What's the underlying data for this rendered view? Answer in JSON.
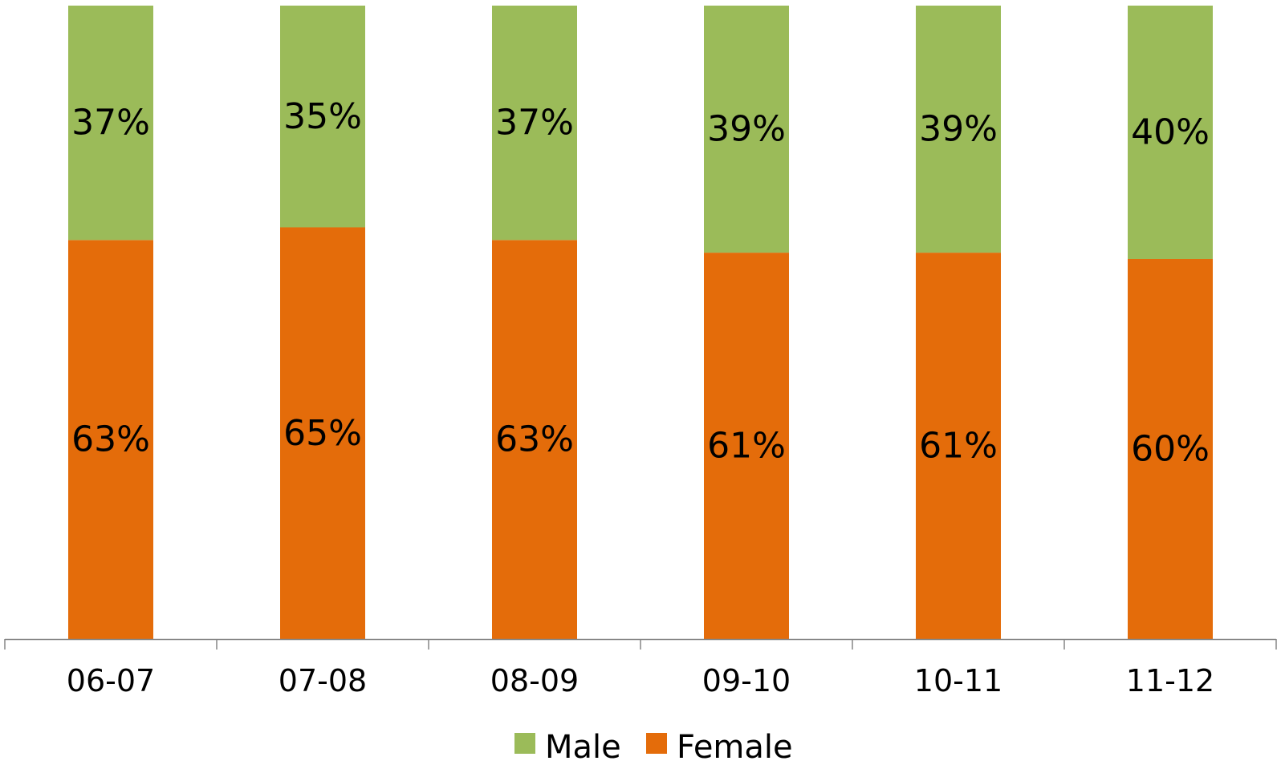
{
  "chart_data": {
    "type": "bar",
    "stacked": true,
    "categories": [
      "06-07",
      "07-08",
      "08-09",
      "09-10",
      "10-11",
      "11-12"
    ],
    "series": [
      {
        "name": "Female",
        "color": "#e46c0a",
        "values": [
          63,
          65,
          63,
          61,
          61,
          60
        ],
        "labels": [
          "63%",
          "65%",
          "63%",
          "61%",
          "61%",
          "60%"
        ]
      },
      {
        "name": "Male",
        "color": "#9bbb59",
        "values": [
          37,
          35,
          37,
          39,
          39,
          40
        ],
        "labels": [
          "37%",
          "35%",
          "37%",
          "39%",
          "39%",
          "40%"
        ]
      }
    ],
    "ylim": [
      0,
      100
    ],
    "grid": false,
    "legend_position": "bottom",
    "legend": [
      {
        "label": "Male",
        "color": "#9bbb59"
      },
      {
        "label": "Female",
        "color": "#e46c0a"
      }
    ]
  }
}
